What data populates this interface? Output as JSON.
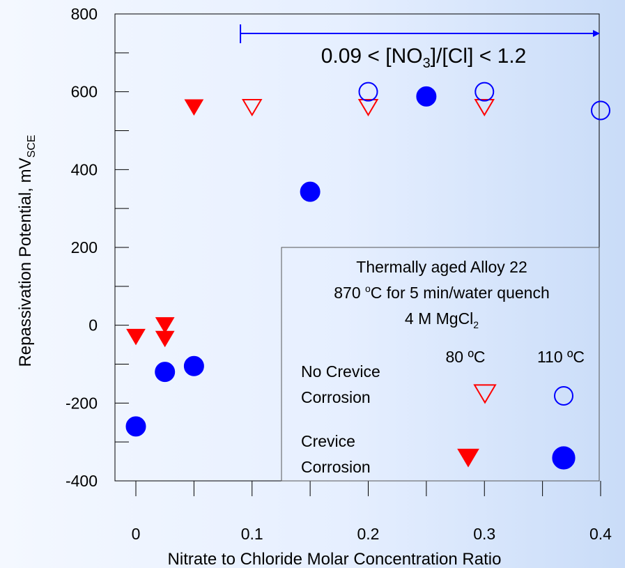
{
  "chart_data": {
    "type": "scatter",
    "xlabel": "Nitrate to Chloride Molar Concentration Ratio",
    "ylabel_main": "Repassivation Potential, mV",
    "ylabel_sub": "SCE",
    "xlim": [
      0,
      0.4
    ],
    "ylim": [
      -400,
      800
    ],
    "xticks": [
      "0",
      "0.1",
      "0.2",
      "0.3",
      "0.4"
    ],
    "yticks": [
      "-400",
      "-200",
      "0",
      "200",
      "400",
      "600",
      "800"
    ],
    "grid": false,
    "annotation": {
      "pre": "0.09 < [NO",
      "sub": "3",
      "post": "]/[Cl] < 1.2",
      "range": [
        0.09,
        0.4
      ]
    },
    "legend": {
      "placement": "bottom-right",
      "title_line1": "Thermally aged Alloy 22",
      "title_line2_pre": "870 ",
      "title_line2_sup": "o",
      "title_line2_post": "C for 5 min/water quench",
      "title_line3_pre": "4 M MgCl",
      "title_line3_sub": "2",
      "col1": "80 ºC",
      "col2": "110 ºC",
      "row1_line1": "No Crevice",
      "row1_line2": "Corrosion",
      "row2_line1": "Crevice",
      "row2_line2": "Corrosion"
    },
    "series": [
      {
        "temperature": "80 ºC",
        "crevice_corrosion": false,
        "marker": "triangle-down-open",
        "color": "#ff0000",
        "points": [
          [
            0.1,
            560
          ],
          [
            0.2,
            560
          ],
          [
            0.3,
            560
          ]
        ]
      },
      {
        "temperature": "80 ºC",
        "crevice_corrosion": true,
        "marker": "triangle-down-filled",
        "color": "#ff0000",
        "points": [
          [
            0.0,
            -30
          ],
          [
            0.025,
            0
          ],
          [
            0.025,
            -35
          ],
          [
            0.05,
            560
          ]
        ]
      },
      {
        "temperature": "110 ºC",
        "crevice_corrosion": false,
        "marker": "circle-open",
        "color": "#0000ff",
        "points": [
          [
            0.2,
            600
          ],
          [
            0.3,
            600
          ],
          [
            0.4,
            552
          ]
        ]
      },
      {
        "temperature": "110 ºC",
        "crevice_corrosion": true,
        "marker": "circle-filled",
        "color": "#0000ff",
        "points": [
          [
            0.0,
            -260
          ],
          [
            0.025,
            -120
          ],
          [
            0.05,
            -105
          ],
          [
            0.15,
            343
          ],
          [
            0.25,
            588
          ]
        ]
      }
    ]
  }
}
